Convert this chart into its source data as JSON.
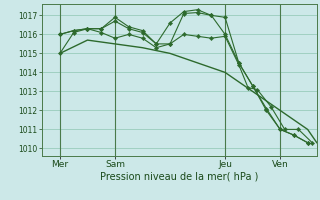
{
  "bg_color": "#cce8e8",
  "grid_color": "#99ccbb",
  "line_color": "#2d6a2d",
  "xlabel": "Pression niveau de la mer( hPa )",
  "ylim": [
    1009.6,
    1017.6
  ],
  "yticks": [
    1010,
    1011,
    1012,
    1013,
    1014,
    1015,
    1016,
    1017
  ],
  "xlim": [
    0,
    120
  ],
  "xtick_positions": [
    8,
    32,
    80,
    104
  ],
  "xtick_labels": [
    "Mer",
    "Sam",
    "Jeu",
    "Ven"
  ],
  "vline_positions": [
    8,
    32,
    80,
    104
  ],
  "series1_x": [
    8,
    14,
    20,
    26,
    32,
    38,
    44,
    50,
    56,
    62,
    68,
    74,
    80,
    86,
    90,
    94,
    100,
    106,
    112,
    118
  ],
  "series1_y": [
    1016.0,
    1016.2,
    1016.3,
    1016.1,
    1015.8,
    1016.0,
    1015.8,
    1015.3,
    1015.5,
    1016.0,
    1015.9,
    1015.8,
    1015.9,
    1014.4,
    1013.2,
    1013.1,
    1012.2,
    1011.0,
    1011.0,
    1010.3
  ],
  "series2_x": [
    8,
    14,
    20,
    26,
    32,
    38,
    44,
    50,
    56,
    62,
    68,
    74,
    80,
    86,
    92,
    98,
    104,
    110,
    116
  ],
  "series2_y": [
    1016.0,
    1016.2,
    1016.3,
    1016.3,
    1016.7,
    1016.3,
    1016.1,
    1015.5,
    1015.5,
    1017.1,
    1017.15,
    1017.0,
    1016.9,
    1014.5,
    1013.3,
    1012.0,
    1011.0,
    1010.7,
    1010.3
  ],
  "series3_x": [
    8,
    14,
    20,
    26,
    32,
    38,
    44,
    50,
    56,
    62,
    68,
    74,
    80,
    86,
    92,
    98,
    104,
    110,
    116
  ],
  "series3_y": [
    1015.0,
    1016.1,
    1016.3,
    1016.3,
    1016.9,
    1016.4,
    1016.2,
    1015.5,
    1016.6,
    1017.2,
    1017.3,
    1017.0,
    1016.0,
    1014.5,
    1013.3,
    1012.1,
    1011.0,
    1010.7,
    1010.3
  ],
  "series4_x": [
    8,
    20,
    32,
    44,
    56,
    68,
    80,
    92,
    104,
    116,
    120
  ],
  "series4_y": [
    1015.0,
    1015.7,
    1015.5,
    1015.3,
    1015.0,
    1014.5,
    1014.0,
    1013.0,
    1012.0,
    1011.0,
    1010.3
  ]
}
